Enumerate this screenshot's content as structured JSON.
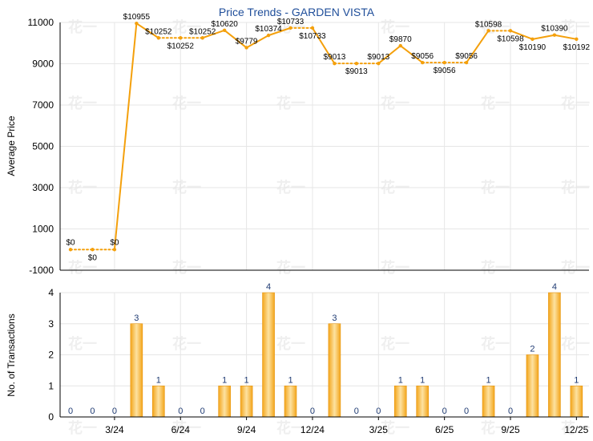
{
  "chart_data": [
    {
      "type": "line",
      "title": "Price Trends - GARDEN VISTA",
      "xlabel": "",
      "ylabel": "Average Price",
      "ylim": [
        -1000,
        11000
      ],
      "yticks": [
        -1000,
        1000,
        3000,
        5000,
        7000,
        9000,
        11000
      ],
      "grid": true,
      "series": [
        {
          "values": [
            0,
            0,
            0,
            10955,
            10252,
            10252,
            10252,
            10620,
            9779,
            10374,
            10733,
            10733,
            9013,
            9013,
            9013,
            9870,
            9056,
            9056,
            9056,
            10598,
            10598,
            10190,
            10390,
            10192
          ],
          "labels": [
            "$0",
            "$0",
            "$0",
            "$10955",
            "$10252",
            "$10252",
            "$10252",
            "$10620",
            "$9779",
            "$10374",
            "$10733",
            "$10733",
            "$9013",
            "$9013",
            "$9013",
            "$9870",
            "$9056",
            "$9056",
            "$9056",
            "$10598",
            "$10598",
            "$10190",
            "$10390",
            "$10192"
          ],
          "color": "#f4a00c"
        }
      ]
    },
    {
      "type": "bar",
      "xlabel": "",
      "ylabel": "No. of Transactions",
      "ylim": [
        0,
        4
      ],
      "yticks": [
        0,
        1,
        2,
        3,
        4
      ],
      "grid": true,
      "series": [
        {
          "values": [
            0,
            0,
            0,
            3,
            1,
            0,
            0,
            1,
            1,
            4,
            1,
            0,
            3,
            0,
            0,
            1,
            1,
            0,
            0,
            1,
            0,
            2,
            4,
            1
          ],
          "color": "#f2b03a"
        }
      ]
    }
  ],
  "x_axis": {
    "tick_labels": [
      "3/24",
      "6/24",
      "9/24",
      "12/24",
      "3/25",
      "6/25",
      "9/25",
      "12/25"
    ]
  },
  "watermark": "花一"
}
